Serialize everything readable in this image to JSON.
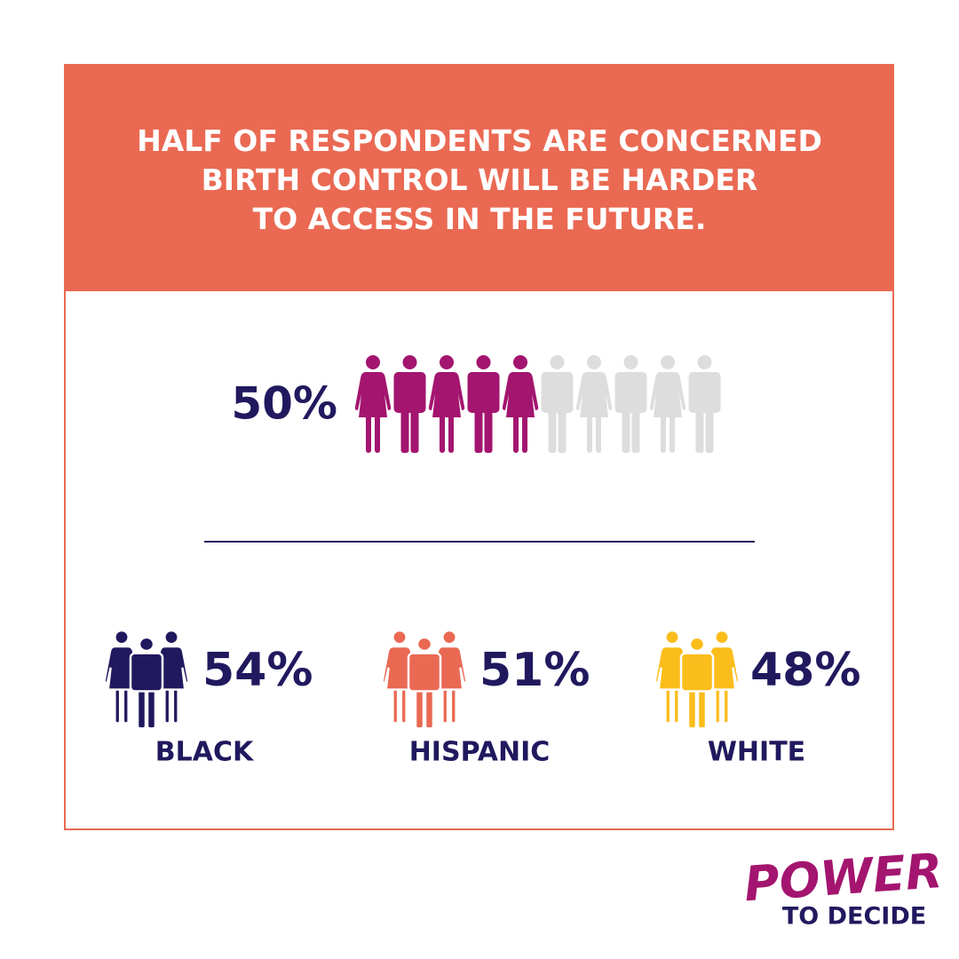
{
  "chart_data": {
    "type": "pictogram",
    "title": "HALF OF RESPONDENTS ARE CONCERNED\nBIRTH CONTROL WILL BE HARDER\nTO ACCESS IN THE FUTURE.",
    "values": [
      50
    ],
    "value_labels": [
      "50%"
    ],
    "color": "#a3156f",
    "empty_color": "#dddddd"
  },
  "groups": [
    {
      "label": "BLACK",
      "stat": "54%",
      "color": "#21195e"
    },
    {
      "label": "HISPANIC",
      "stat": "51%",
      "color": "#ea6953"
    },
    {
      "label": "WHITE",
      "stat": "48%",
      "color": "#fbbd1b"
    }
  ],
  "logo": {
    "line1": "POWER",
    "line2": "TO DECIDE"
  }
}
